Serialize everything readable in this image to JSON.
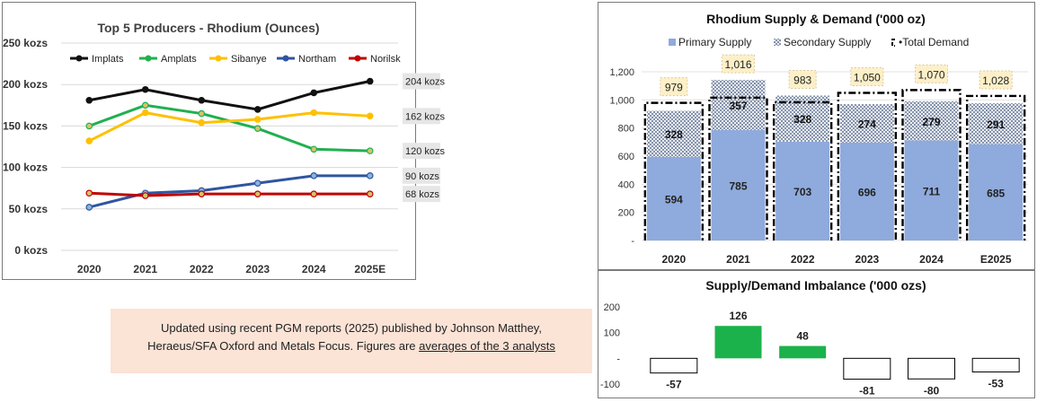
{
  "colors": {
    "implats": "#111111",
    "amplats": "#20b050",
    "sibanye": "#ffc000",
    "northam": "#2f55a0",
    "norilsk": "#c00000",
    "primary": "#8faadc",
    "secondary_hatch": "#5b6e8f",
    "positive": "#1cb24b",
    "label_box": "#fdf0c8"
  },
  "note": {
    "line1": "Updated using recent PGM reports (2025) published by Johnson Matthey,",
    "line2a": "Heraeus/SFA Oxford and Metals Focus. Figures are ",
    "line2b": "averages of the 3 analysts"
  },
  "chart_data": [
    {
      "type": "line",
      "title": "Top 5 Producers - Rhodium (Ounces)",
      "categories": [
        "2020",
        "2021",
        "2022",
        "2023",
        "2024",
        "2025E"
      ],
      "y_ticks": [
        "0 kozs",
        "50 kozs",
        "100 kozs",
        "150 kozs",
        "200 kozs",
        "250 kozs"
      ],
      "ylim": [
        0,
        250
      ],
      "legend_position": "top",
      "series": [
        {
          "name": "Implats",
          "values": [
            181,
            194,
            181,
            170,
            190,
            204
          ],
          "end_label": "204 kozs"
        },
        {
          "name": "Amplats",
          "values": [
            150,
            175,
            165,
            147,
            122,
            120
          ],
          "end_label": "120 kozs"
        },
        {
          "name": "Sibanye",
          "values": [
            132,
            166,
            154,
            158,
            166,
            162
          ],
          "end_label": "162 kozs"
        },
        {
          "name": "Northam",
          "values": [
            52,
            69,
            72,
            81,
            90,
            90
          ],
          "end_label": "90 kozs"
        },
        {
          "name": "Norilsk",
          "values": [
            69,
            66,
            68,
            68,
            68,
            68
          ],
          "end_label": "68 kozs"
        }
      ]
    },
    {
      "type": "bar",
      "title": "Rhodium Supply & Demand ('000 oz)",
      "categories": [
        "2020",
        "2021",
        "2022",
        "2023",
        "2024",
        "E2025"
      ],
      "y_ticks": [
        "-",
        "200",
        "400",
        "600",
        "800",
        "1,000",
        "1,200"
      ],
      "ylim": [
        0,
        1200
      ],
      "legend": [
        "Primary Supply",
        "Secondary Supply",
        "Total Demand"
      ],
      "series": [
        {
          "name": "Primary Supply",
          "values": [
            594,
            785,
            703,
            696,
            711,
            685
          ],
          "labels": [
            "594",
            "785",
            "703",
            "696",
            "711",
            "685"
          ]
        },
        {
          "name": "Secondary Supply",
          "values": [
            328,
            357,
            328,
            274,
            279,
            291
          ],
          "labels": [
            "328",
            "357",
            "328",
            "274",
            "279",
            "291"
          ]
        },
        {
          "name": "Total Demand",
          "values": [
            979,
            1016,
            983,
            1050,
            1070,
            1028
          ],
          "labels": [
            "979",
            "1,016",
            "983",
            "1,050",
            "1,070",
            "1,028"
          ]
        }
      ]
    },
    {
      "type": "bar",
      "title": "Supply/Demand Imbalance ('000 ozs)",
      "categories": [
        "2020",
        "2021",
        "2022",
        "2023",
        "2024",
        "E2025"
      ],
      "y_ticks": [
        "-100",
        "-",
        "100",
        "200"
      ],
      "ylim": [
        -100,
        200
      ],
      "values": [
        -57,
        126,
        48,
        -81,
        -80,
        -53
      ],
      "labels": [
        "-57",
        "126",
        "48",
        "-81",
        "-80",
        "-53"
      ]
    }
  ]
}
